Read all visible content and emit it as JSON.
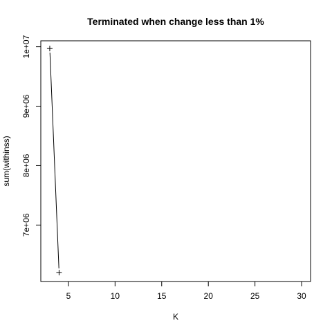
{
  "chart_data": {
    "type": "line",
    "title": "Terminated when change less than 1%",
    "xlabel": "K",
    "ylabel": "sum(withinss)",
    "xlim": [
      2.04,
      30.96
    ],
    "ylim": [
      6050000,
      10100000
    ],
    "x_ticks": [
      5,
      10,
      15,
      20,
      25,
      30
    ],
    "x_tick_labels": [
      "5",
      "10",
      "15",
      "20",
      "25",
      "30"
    ],
    "y_ticks": [
      7000000,
      8000000,
      9000000,
      10000000
    ],
    "y_tick_labels": [
      "7e+06",
      "8e+06",
      "9e+06",
      "1e+07"
    ],
    "grid": false,
    "marker": "+",
    "series": [
      {
        "x": [
          3,
          4
        ],
        "y": [
          9970000,
          6200000
        ]
      }
    ]
  }
}
